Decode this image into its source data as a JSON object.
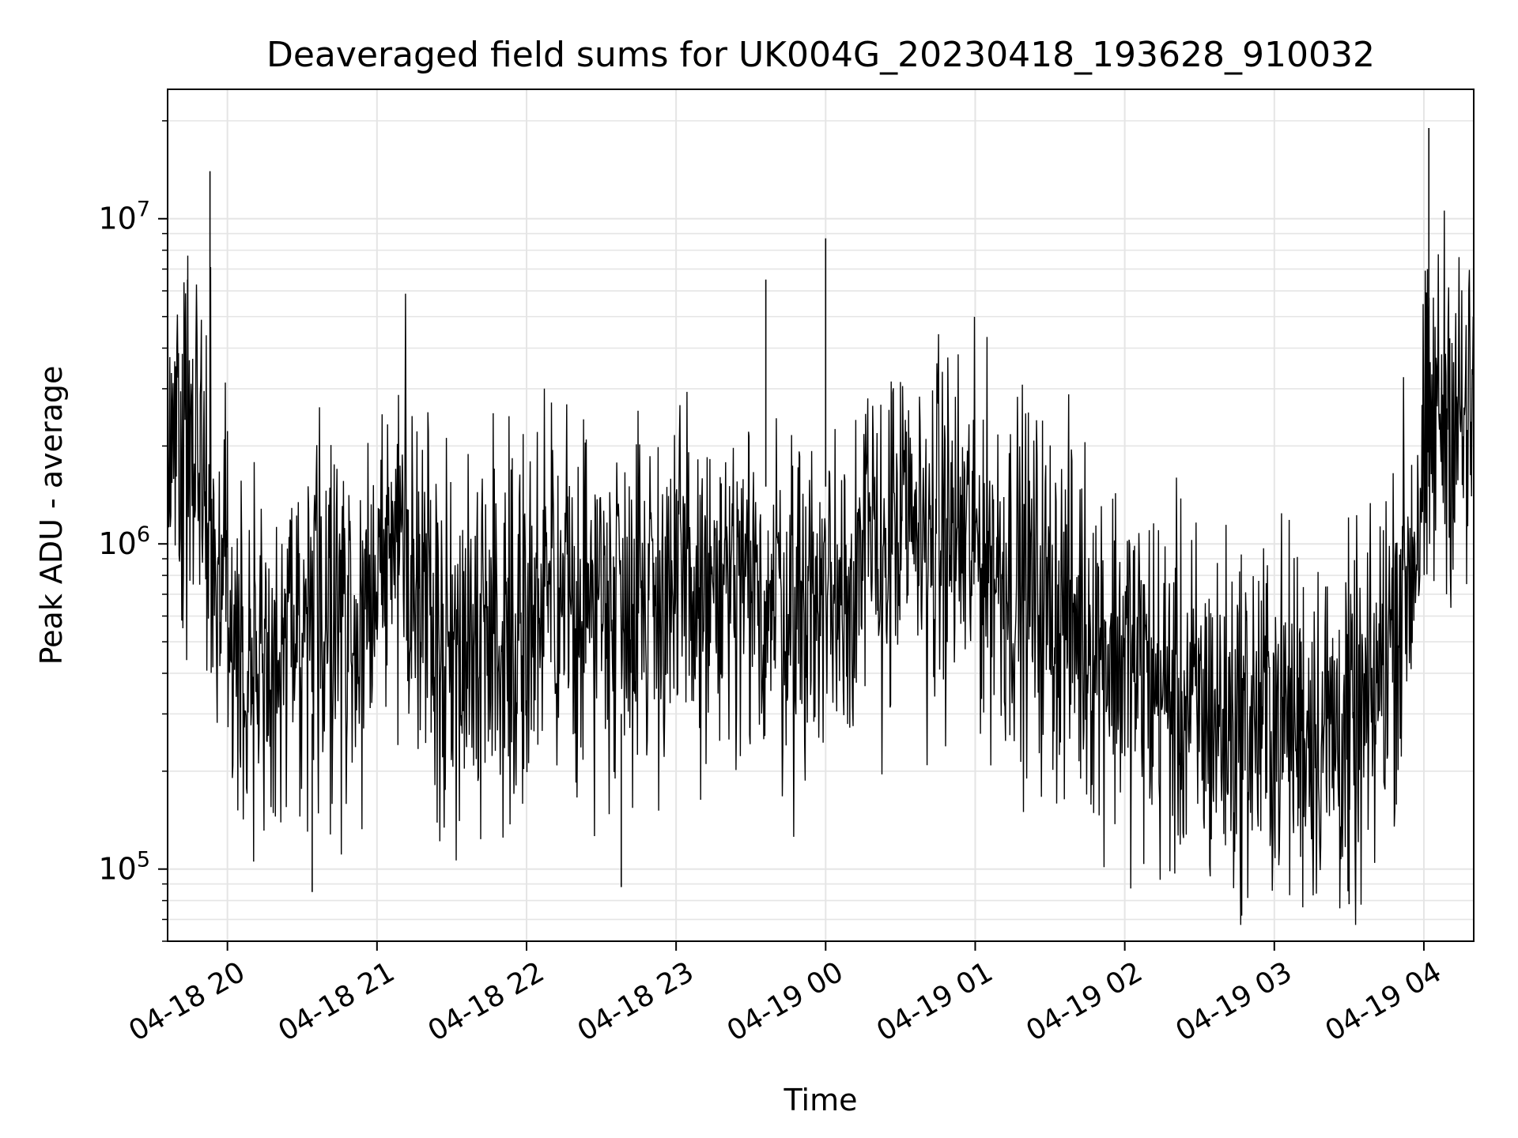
{
  "chart_data": {
    "type": "line",
    "title": "Deaveraged field sums for UK004G_20230418_193628_910032",
    "xlabel": "Time",
    "ylabel": "Peak ADU - average",
    "yscale": "log",
    "ylim": [
      60000,
      25000000
    ],
    "xlim": [
      "2023-04-18 19:36",
      "2023-04-19 04:20"
    ],
    "grid": true,
    "line_color": "#000000",
    "grid_color": "#e5e5e5",
    "x_ticks": [
      {
        "t": "2023-04-18 20:00",
        "label": "04-18 20"
      },
      {
        "t": "2023-04-18 21:00",
        "label": "04-18 21"
      },
      {
        "t": "2023-04-18 22:00",
        "label": "04-18 22"
      },
      {
        "t": "2023-04-18 23:00",
        "label": "04-18 23"
      },
      {
        "t": "2023-04-19 00:00",
        "label": "04-19 00"
      },
      {
        "t": "2023-04-19 01:00",
        "label": "04-19 01"
      },
      {
        "t": "2023-04-19 02:00",
        "label": "04-19 02"
      },
      {
        "t": "2023-04-19 03:00",
        "label": "04-19 03"
      },
      {
        "t": "2023-04-19 04:00",
        "label": "04-19 04"
      }
    ],
    "y_ticks": [
      {
        "value": 100000,
        "label": "10",
        "exp": "5"
      },
      {
        "value": 1000000,
        "label": "10",
        "exp": "6"
      },
      {
        "value": 10000000,
        "label": "10",
        "exp": "7"
      }
    ],
    "series": [
      {
        "x": [
          "2023-04-18 19:36",
          "2023-04-18 19:40",
          "2023-04-18 19:44",
          "2023-04-18 19:48",
          "2023-04-18 19:52",
          "2023-04-18 19:56",
          "2023-04-18 20:00",
          "2023-04-18 20:05",
          "2023-04-18 20:10",
          "2023-04-18 20:15",
          "2023-04-18 20:20",
          "2023-04-18 20:25",
          "2023-04-18 20:30",
          "2023-04-18 20:35",
          "2023-04-18 20:40",
          "2023-04-18 20:45",
          "2023-04-18 20:50",
          "2023-04-18 20:55",
          "2023-04-18 21:00",
          "2023-04-18 21:05",
          "2023-04-18 21:10",
          "2023-04-18 21:15",
          "2023-04-18 21:20",
          "2023-04-18 21:30",
          "2023-04-18 21:40",
          "2023-04-18 21:50",
          "2023-04-18 22:00",
          "2023-04-18 22:15",
          "2023-04-18 22:30",
          "2023-04-18 22:45",
          "2023-04-18 23:00",
          "2023-04-18 23:15",
          "2023-04-18 23:30",
          "2023-04-18 23:38",
          "2023-04-18 23:45",
          "2023-04-19 00:00",
          "2023-04-19 00:15",
          "2023-04-19 00:30",
          "2023-04-19 00:45",
          "2023-04-19 01:00",
          "2023-04-19 01:15",
          "2023-04-19 01:30",
          "2023-04-19 01:45",
          "2023-04-19 02:00",
          "2023-04-19 02:15",
          "2023-04-19 02:30",
          "2023-04-19 02:45",
          "2023-04-19 03:00",
          "2023-04-19 03:15",
          "2023-04-19 03:30",
          "2023-04-19 03:38",
          "2023-04-19 03:45",
          "2023-04-19 03:50",
          "2023-04-19 03:55",
          "2023-04-19 04:00",
          "2023-04-19 04:05",
          "2023-04-19 04:10",
          "2023-04-19 04:15",
          "2023-04-19 04:20"
        ],
        "values": [
          2000000,
          2500000,
          1800000,
          2200000,
          1600000,
          900000,
          600000,
          500000,
          450000,
          400000,
          380000,
          420000,
          480000,
          550000,
          600000,
          650000,
          600000,
          550000,
          700000,
          900000,
          1100000,
          800000,
          650000,
          500000,
          520000,
          550000,
          600000,
          650000,
          700000,
          750000,
          700000,
          680000,
          650000,
          700000,
          650000,
          700000,
          900000,
          1050000,
          1100000,
          1000000,
          800000,
          650000,
          550000,
          450000,
          350000,
          300000,
          280000,
          300000,
          280000,
          260000,
          280000,
          500000,
          650000,
          900000,
          1600000,
          2500000,
          2800000,
          2300000,
          2200000
        ]
      }
    ],
    "spikes": [
      {
        "x": "2023-04-18 19:53",
        "value": 14000000
      },
      {
        "x": "2023-04-18 19:44",
        "value": 6500000
      },
      {
        "x": "2023-04-18 23:36",
        "value": 6500000
      },
      {
        "x": "2023-04-19 00:00",
        "value": 8700000
      },
      {
        "x": "2023-04-19 04:02",
        "value": 19000000
      },
      {
        "x": "2023-04-18 20:34",
        "value": 85000
      },
      {
        "x": "2023-04-18 22:38",
        "value": 88000
      },
      {
        "x": "2023-04-19 03:30",
        "value": 78000
      }
    ]
  }
}
